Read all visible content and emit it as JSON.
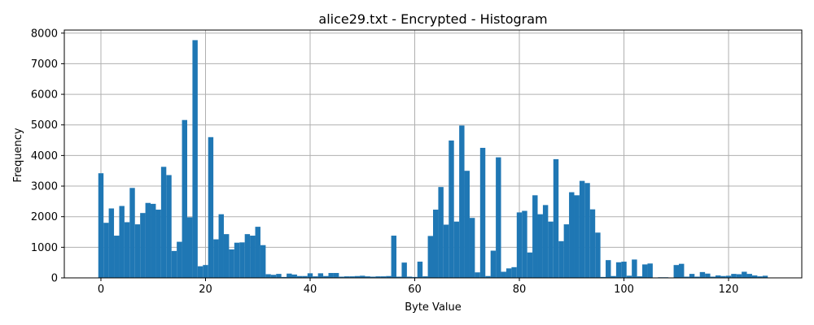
{
  "chart_data": {
    "type": "bar",
    "title": "alice29.txt - Encrypted - Histogram",
    "xlabel": "Byte Value",
    "ylabel": "Frequency",
    "xlim": [
      -7,
      134
    ],
    "ylim": [
      0,
      8100
    ],
    "xticks": [
      0,
      20,
      40,
      60,
      80,
      100,
      120
    ],
    "yticks": [
      0,
      1000,
      2000,
      3000,
      4000,
      5000,
      6000,
      7000,
      8000
    ],
    "grid": true,
    "bar_color": "#1f77b4",
    "bin_width": 1,
    "x": [
      0,
      1,
      2,
      3,
      4,
      5,
      6,
      7,
      8,
      9,
      10,
      11,
      12,
      13,
      14,
      15,
      16,
      17,
      18,
      19,
      20,
      21,
      22,
      23,
      24,
      25,
      26,
      27,
      28,
      29,
      30,
      31,
      32,
      33,
      34,
      35,
      36,
      37,
      38,
      39,
      40,
      41,
      42,
      43,
      44,
      45,
      46,
      47,
      48,
      49,
      50,
      51,
      52,
      53,
      54,
      55,
      56,
      57,
      58,
      59,
      60,
      61,
      62,
      63,
      64,
      65,
      66,
      67,
      68,
      69,
      70,
      71,
      72,
      73,
      74,
      75,
      76,
      77,
      78,
      79,
      80,
      81,
      82,
      83,
      84,
      85,
      86,
      87,
      88,
      89,
      90,
      91,
      92,
      93,
      94,
      95,
      96,
      97,
      98,
      99,
      100,
      101,
      102,
      103,
      104,
      105,
      106,
      107,
      108,
      109,
      110,
      111,
      112,
      113,
      114,
      115,
      116,
      117,
      118,
      119,
      120,
      121,
      122,
      123,
      124,
      125,
      126,
      127
    ],
    "values": [
      3420,
      1800,
      2270,
      1380,
      2350,
      1820,
      2940,
      1750,
      2120,
      2450,
      2420,
      2230,
      3630,
      3360,
      880,
      1180,
      5160,
      1980,
      7770,
      380,
      420,
      4600,
      1260,
      2080,
      1430,
      930,
      1150,
      1160,
      1430,
      1380,
      1670,
      1070,
      120,
      100,
      130,
      30,
      140,
      110,
      60,
      60,
      150,
      50,
      150,
      60,
      160,
      160,
      40,
      50,
      50,
      60,
      70,
      50,
      40,
      50,
      50,
      60,
      1380,
      40,
      500,
      40,
      30,
      530,
      50,
      1370,
      2230,
      2970,
      1740,
      4490,
      1840,
      4980,
      3500,
      1960,
      180,
      4250,
      60,
      890,
      3940,
      200,
      310,
      350,
      2140,
      2190,
      830,
      2700,
      2080,
      2380,
      1840,
      3880,
      1200,
      1750,
      2800,
      2700,
      3170,
      3100,
      2240,
      1480,
      30,
      580,
      60,
      510,
      530,
      70,
      600,
      50,
      440,
      470,
      0,
      20,
      20,
      0,
      420,
      460,
      40,
      130,
      40,
      190,
      140,
      40,
      80,
      60,
      70,
      130,
      120,
      200,
      130,
      80,
      50,
      70
    ]
  }
}
